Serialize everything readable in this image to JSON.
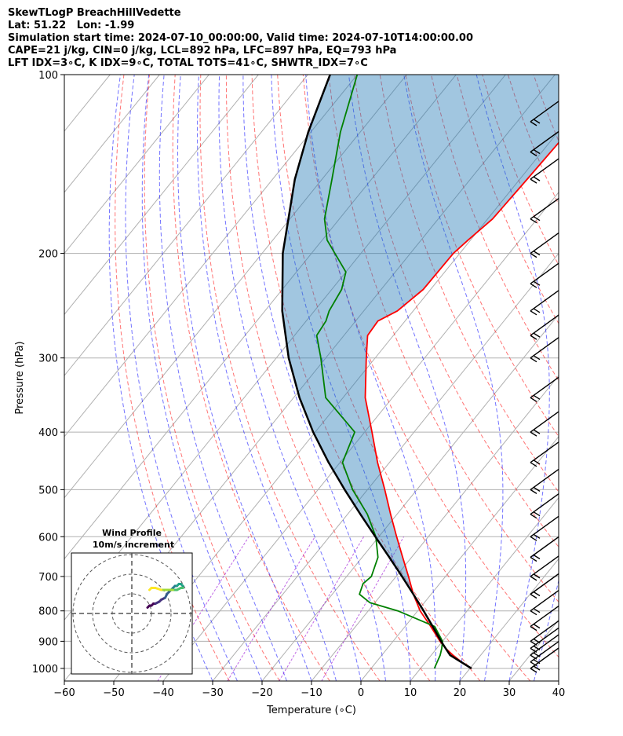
{
  "header": {
    "line1": "SkewTLogP BreachHillVedette",
    "line2": "Lat: 51.22   Lon: -1.99",
    "line3": "Simulation start time: 2024-07-10_00:00:00, Valid time: 2024-07-10T14:00:00.00",
    "line4": "CAPE=21 j/kg, CIN=0 j/kg, LCL=892 hPa, LFC=897 hPa, EQ=793 hPa",
    "line5": "LFT IDX=3∘C, K IDX=9∘C, TOTAL TOTS=41∘C, SHWTR_IDX=7∘C"
  },
  "chart_data": {
    "type": "line",
    "title": "SkewTLogP BreachHillVedette",
    "xlabel": "Temperature (∘C)",
    "ylabel": "Pressure (hPa)",
    "xlim": [
      -60,
      40
    ],
    "ylim": [
      1050,
      100
    ],
    "x_ticks": [
      -60,
      -50,
      -40,
      -30,
      -20,
      -10,
      0,
      10,
      20,
      30,
      40
    ],
    "x_tick_labels": [
      "−60",
      "−50",
      "−40",
      "−30",
      "−20",
      "−10",
      "0",
      "10",
      "20",
      "30",
      "40"
    ],
    "y_ticks": [
      1000,
      900,
      800,
      700,
      600,
      500,
      400,
      300,
      200,
      100
    ],
    "y_tick_labels": [
      "1000",
      "900",
      "800",
      "700",
      "600",
      "500",
      "400",
      "300",
      "200",
      "100"
    ],
    "series": [
      {
        "name": "Temperature",
        "color": "#ff0000",
        "pressure": [
          1000,
          975,
          950,
          925,
          900,
          850,
          800,
          750,
          700,
          650,
          600,
          550,
          500,
          450,
          400,
          350,
          300,
          275,
          260,
          250,
          230,
          200,
          190,
          175,
          150,
          125,
          110,
          100
        ],
        "temperature": [
          20.3,
          17.2,
          14.4,
          11.8,
          9.5,
          5.2,
          0.5,
          -3.6,
          -7.5,
          -11.8,
          -16.4,
          -21.3,
          -26.5,
          -32.4,
          -38.5,
          -45.5,
          -51.8,
          -55.2,
          -55.5,
          -53.2,
          -51.5,
          -51.3,
          -50.5,
          -49.0,
          -48.5,
          -48.0,
          -47.0,
          -46.0
        ]
      },
      {
        "name": "Dewpoint",
        "color": "#008000",
        "pressure": [
          1000,
          975,
          950,
          925,
          900,
          850,
          800,
          775,
          750,
          720,
          700,
          650,
          600,
          550,
          500,
          450,
          400,
          350,
          300,
          275,
          260,
          250,
          230,
          215,
          190,
          175,
          150,
          125,
          100
        ],
        "temperature": [
          12.8,
          12.3,
          11.8,
          11.0,
          10.0,
          6.0,
          -4.0,
          -11.0,
          -14.5,
          -15.5,
          -15.0,
          -16.8,
          -20.6,
          -26.0,
          -33.0,
          -39.5,
          -42.0,
          -53.5,
          -61.0,
          -65.5,
          -66.0,
          -67.0,
          -68.0,
          -70.0,
          -79.0,
          -83.0,
          -88.0,
          -94.0,
          -100.0
        ]
      },
      {
        "name": "Parcel profile",
        "color": "#000000",
        "pressure": [
          1000,
          950,
          900,
          850,
          800,
          750,
          700,
          650,
          600,
          550,
          500,
          450,
          400,
          350,
          300,
          250,
          200,
          150,
          125,
          100
        ],
        "temperature": [
          20.3,
          13.8,
          9.7,
          5.6,
          1.2,
          -3.6,
          -8.8,
          -14.5,
          -20.7,
          -27.4,
          -34.6,
          -42.3,
          -50.4,
          -58.8,
          -67.5,
          -76.5,
          -85.8,
          -95.5,
          -100.5,
          -105.5
        ]
      }
    ],
    "cape_fill": "CAPE",
    "wind_barbs": [
      {
        "p": 1000,
        "label": "barb"
      },
      {
        "p": 975,
        "label": "barb"
      },
      {
        "p": 950,
        "label": "barb"
      },
      {
        "p": 925,
        "label": "barb"
      },
      {
        "p": 900,
        "label": "barb"
      },
      {
        "p": 850,
        "label": "barb"
      },
      {
        "p": 800,
        "label": "barb"
      },
      {
        "p": 750,
        "label": "barb"
      },
      {
        "p": 700,
        "label": "barb"
      },
      {
        "p": 650,
        "label": "barb"
      },
      {
        "p": 600,
        "label": "barb"
      },
      {
        "p": 550,
        "label": "barb"
      },
      {
        "p": 500,
        "label": "barb"
      },
      {
        "p": 450,
        "label": "barb"
      },
      {
        "p": 400,
        "label": "barb"
      },
      {
        "p": 350,
        "label": "barb"
      },
      {
        "p": 300,
        "label": "barb"
      },
      {
        "p": 275,
        "label": "barb"
      },
      {
        "p": 250,
        "label": "barb"
      },
      {
        "p": 225,
        "label": "barb"
      },
      {
        "p": 200,
        "label": "barb"
      },
      {
        "p": 175,
        "label": "barb"
      },
      {
        "p": 150,
        "label": "barb"
      },
      {
        "p": 135,
        "label": "barb"
      },
      {
        "p": 120,
        "label": "barb"
      }
    ],
    "hodograph": {
      "title_line1": "Wind Profile",
      "title_line2": "10m/s increment",
      "rings_ms": [
        10,
        20,
        30
      ],
      "points_ms": [
        [
          8,
          3
        ],
        [
          9,
          4
        ],
        [
          10,
          4
        ],
        [
          11,
          5
        ],
        [
          12,
          5
        ],
        [
          14,
          6
        ],
        [
          15,
          7
        ],
        [
          17,
          8
        ],
        [
          18,
          10
        ],
        [
          19,
          11
        ],
        [
          20,
          12
        ],
        [
          21,
          13
        ],
        [
          22,
          14
        ],
        [
          23,
          14
        ],
        [
          24,
          15
        ],
        [
          25,
          15
        ],
        [
          26,
          14
        ],
        [
          26,
          13
        ],
        [
          25,
          13
        ],
        [
          23,
          12
        ],
        [
          21,
          12
        ],
        [
          19,
          12
        ],
        [
          17,
          12
        ],
        [
          15,
          12
        ],
        [
          12,
          13
        ],
        [
          10,
          13
        ],
        [
          9,
          12
        ]
      ]
    }
  }
}
